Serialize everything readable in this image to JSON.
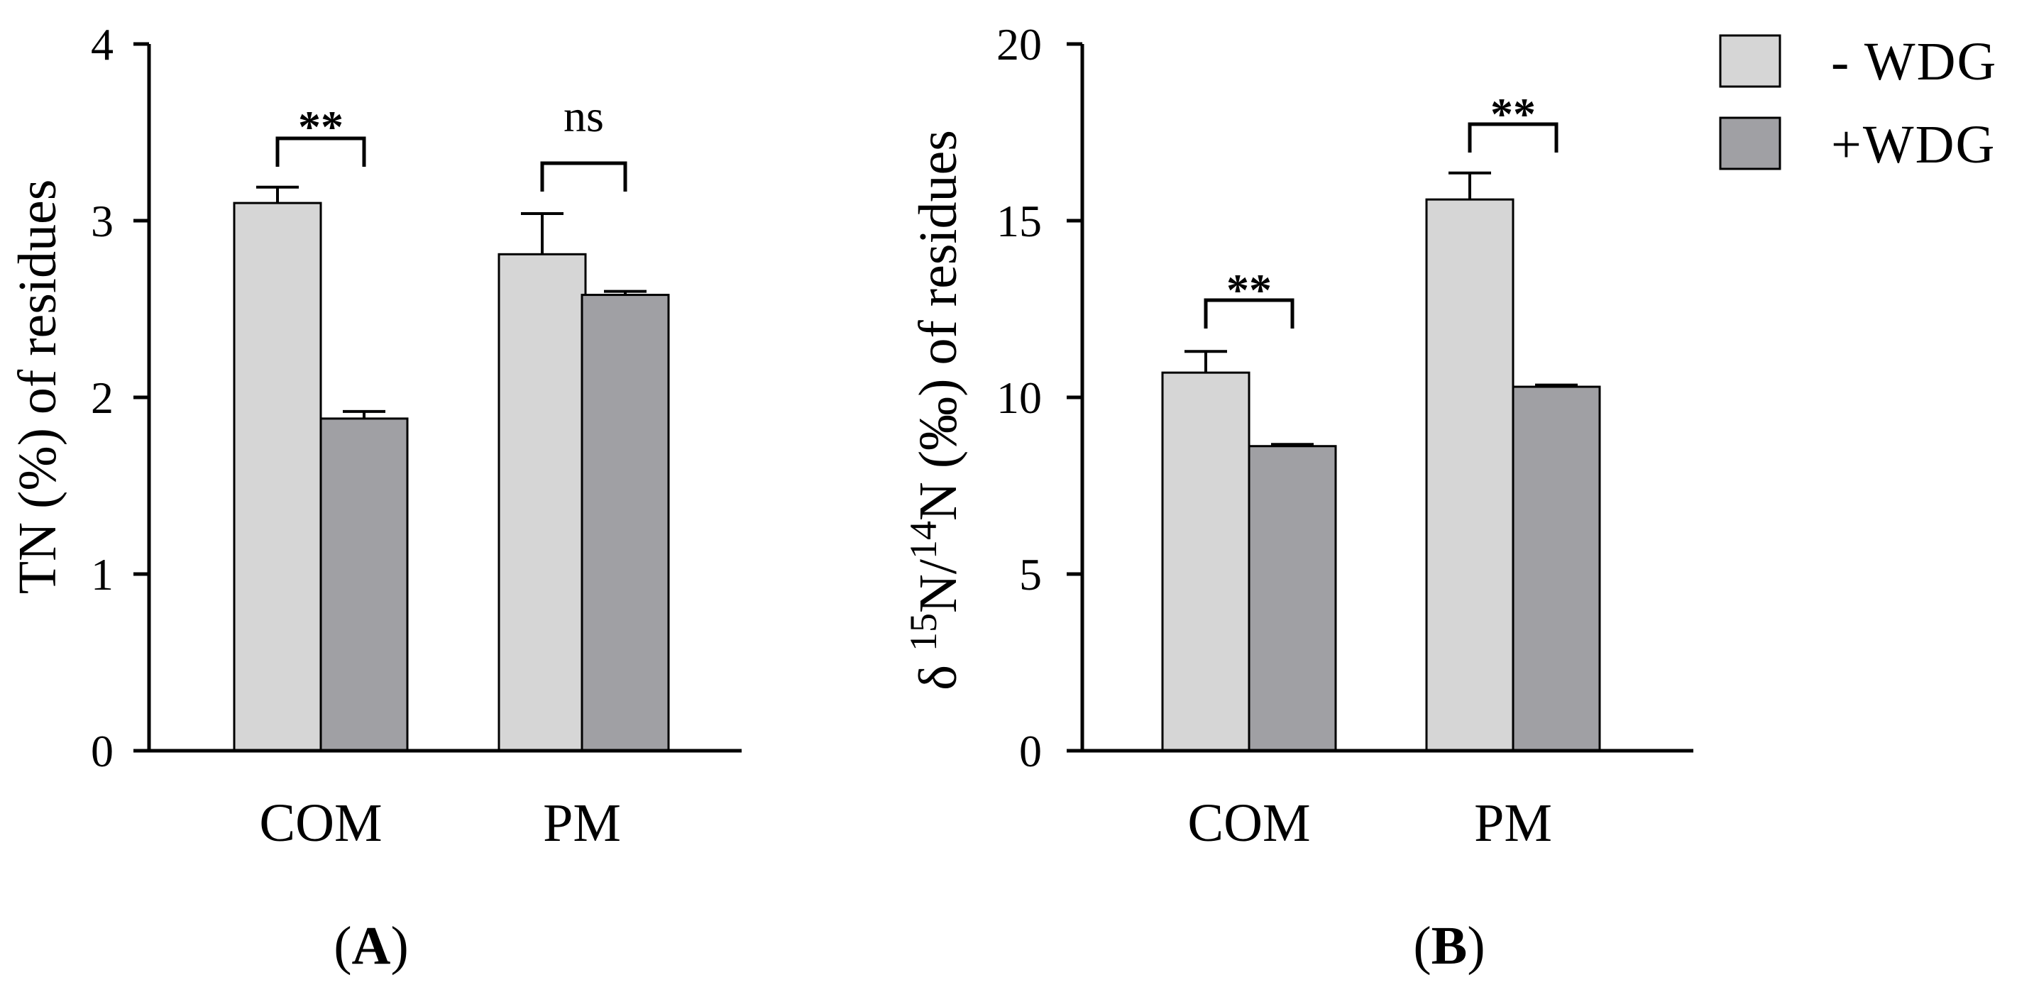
{
  "figure": {
    "panels": [
      "(A)",
      "(B)"
    ],
    "panel_letters": [
      "A",
      "B"
    ]
  },
  "legend": {
    "entries": [
      {
        "label": "- WDG",
        "color": "#d6d6d6"
      },
      {
        "label": "+WDG",
        "color": "#a0a0a4"
      }
    ]
  },
  "colors": {
    "minus_wdg": "#d6d6d6",
    "plus_wdg": "#a0a0a4",
    "axis": "#000000"
  },
  "chart_data": [
    {
      "type": "bar",
      "panel": "A",
      "title": "",
      "xlabel": "",
      "ylabel": "TN (%) of residues",
      "ylim": [
        0,
        4
      ],
      "yticks": [
        0,
        1,
        2,
        3,
        4
      ],
      "categories": [
        "COM",
        "PM"
      ],
      "series": [
        {
          "name": "- WDG",
          "values": [
            3.1,
            2.81
          ],
          "errors": [
            0.09,
            0.23
          ]
        },
        {
          "name": "+WDG",
          "values": [
            1.88,
            2.58
          ],
          "errors": [
            0.04,
            0.02
          ]
        }
      ],
      "significance": [
        {
          "category": "COM",
          "label": "**"
        },
        {
          "category": "PM",
          "label": "ns"
        }
      ],
      "grid": false
    },
    {
      "type": "bar",
      "panel": "B",
      "title": "",
      "xlabel": "",
      "ylabel": "δ 15N/14N (‰) of residues",
      "ylabel_parts": {
        "delta": "δ ",
        "sup1": "15",
        "n1": "N/",
        "sup2": "14",
        "rest": "N (‰) of residues"
      },
      "ylim": [
        0,
        20
      ],
      "yticks": [
        0,
        5,
        10,
        15,
        20
      ],
      "categories": [
        "COM",
        "PM"
      ],
      "series": [
        {
          "name": "- WDG",
          "values": [
            10.7,
            15.6
          ],
          "errors": [
            0.6,
            0.75
          ]
        },
        {
          "name": "+WDG",
          "values": [
            8.62,
            10.3
          ],
          "errors": [
            0.05,
            0.05
          ]
        }
      ],
      "significance": [
        {
          "category": "COM",
          "label": "**"
        },
        {
          "category": "PM",
          "label": "**"
        }
      ],
      "legend_position": "top-right",
      "grid": false
    }
  ]
}
